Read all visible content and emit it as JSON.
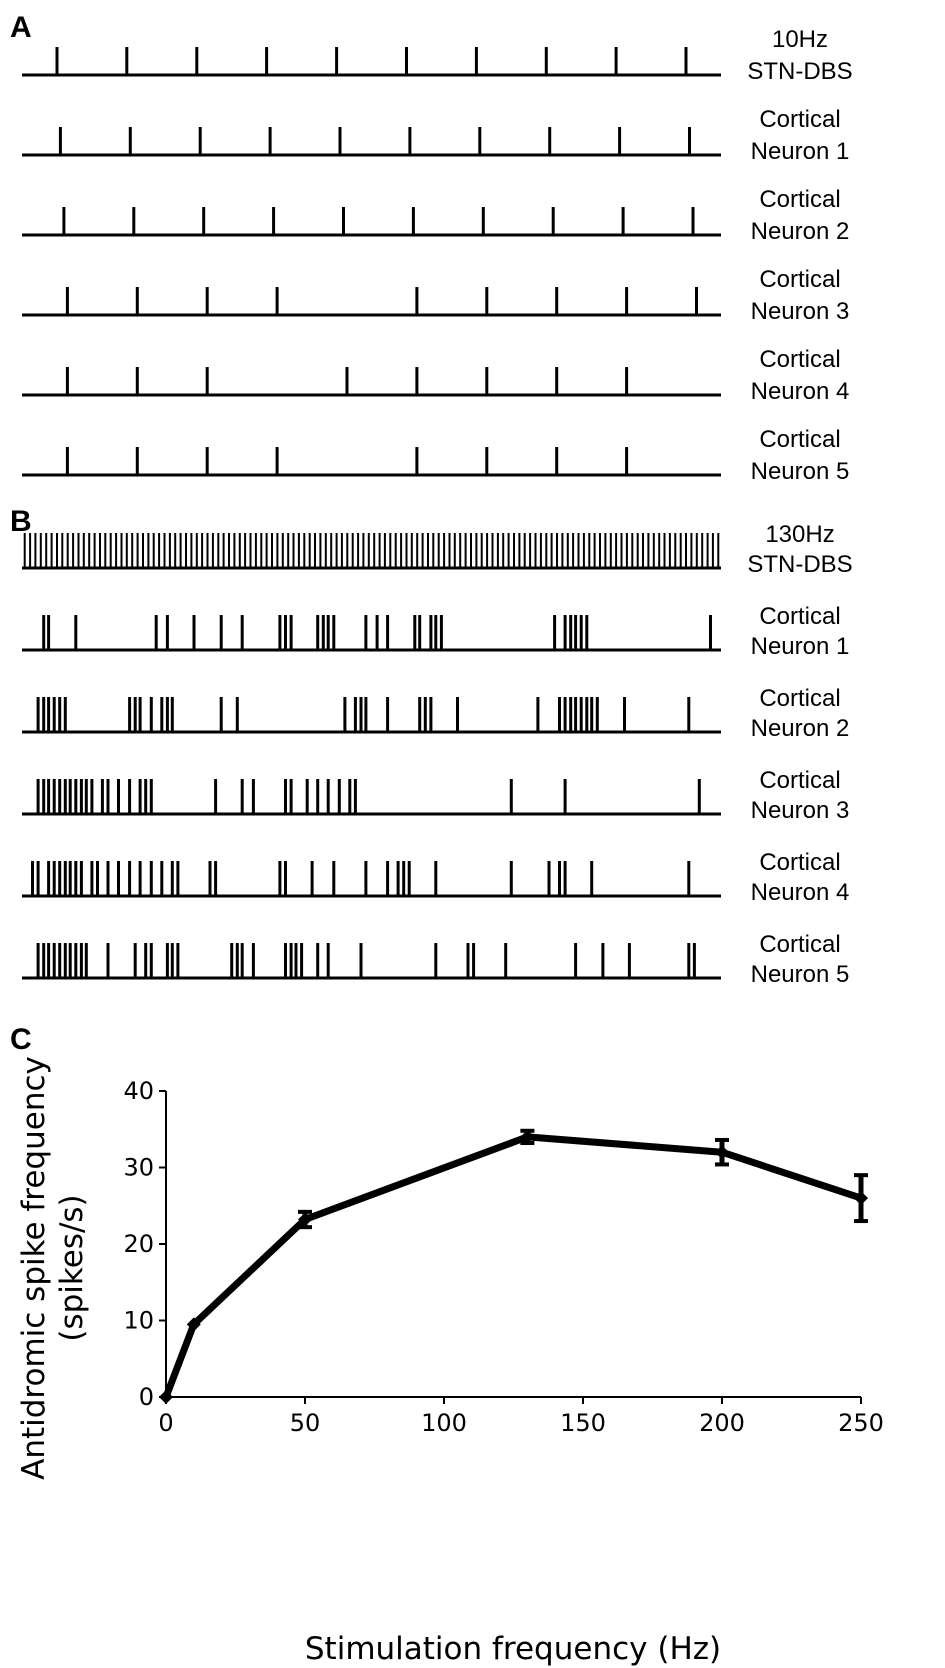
{
  "chart_data": [
    {
      "type": "raster",
      "panel_label": "A",
      "rows": [
        {
          "label_lines": [
            "10Hz",
            "STN-DBS"
          ],
          "spikes": [
            0.05,
            0.15,
            0.25,
            0.35,
            0.45,
            0.55,
            0.65,
            0.75,
            0.85,
            0.95
          ]
        },
        {
          "label_lines": [
            "Cortical",
            "Neuron 1"
          ],
          "spikes": [
            0.055,
            0.155,
            0.255,
            0.355,
            0.455,
            0.555,
            0.655,
            0.755,
            0.855,
            0.955
          ]
        },
        {
          "label_lines": [
            "Cortical",
            "Neuron 2"
          ],
          "spikes": [
            0.06,
            0.16,
            0.26,
            0.36,
            0.46,
            0.56,
            0.66,
            0.76,
            0.86,
            0.96
          ]
        },
        {
          "label_lines": [
            "Cortical",
            "Neuron 3"
          ],
          "spikes": [
            0.065,
            0.165,
            0.265,
            0.365,
            0.565,
            0.665,
            0.765,
            0.865,
            0.965
          ]
        },
        {
          "label_lines": [
            "Cortical",
            "Neuron 4"
          ],
          "spikes": [
            0.065,
            0.165,
            0.265,
            0.465,
            0.565,
            0.665,
            0.765,
            0.865
          ]
        },
        {
          "label_lines": [
            "Cortical",
            "Neuron 5"
          ],
          "spikes": [
            0.065,
            0.165,
            0.265,
            0.365,
            0.565,
            0.665,
            0.765,
            0.865
          ]
        }
      ]
    },
    {
      "type": "raster",
      "panel_label": "B",
      "rows": [
        {
          "label_lines": [
            "130Hz",
            "STN-DBS"
          ],
          "dense_train_hz": 130
        },
        {
          "label_lines": [
            "Cortical",
            "Neuron 1"
          ],
          "spikes": [
            0.031,
            0.038,
            0.077,
            0.192,
            0.208,
            0.246,
            0.285,
            0.315,
            0.369,
            0.377,
            0.385,
            0.423,
            0.431,
            0.438,
            0.446,
            0.492,
            0.508,
            0.523,
            0.562,
            0.569,
            0.585,
            0.592,
            0.6,
            0.762,
            0.777,
            0.785,
            0.792,
            0.8,
            0.808,
            0.985
          ]
        },
        {
          "label_lines": [
            "Cortical",
            "Neuron 2"
          ],
          "spikes": [
            0.023,
            0.031,
            0.038,
            0.046,
            0.054,
            0.062,
            0.154,
            0.162,
            0.169,
            0.185,
            0.2,
            0.208,
            0.215,
            0.285,
            0.308,
            0.462,
            0.477,
            0.485,
            0.492,
            0.523,
            0.569,
            0.577,
            0.585,
            0.623,
            0.738,
            0.769,
            0.777,
            0.785,
            0.792,
            0.8,
            0.808,
            0.815,
            0.823,
            0.862,
            0.954
          ]
        },
        {
          "label_lines": [
            "Cortical",
            "Neuron 3"
          ],
          "spikes": [
            0.023,
            0.031,
            0.038,
            0.046,
            0.054,
            0.062,
            0.069,
            0.077,
            0.085,
            0.092,
            0.1,
            0.115,
            0.123,
            0.138,
            0.154,
            0.169,
            0.177,
            0.185,
            0.277,
            0.315,
            0.331,
            0.377,
            0.385,
            0.408,
            0.423,
            0.438,
            0.454,
            0.469,
            0.477,
            0.7,
            0.777,
            0.969
          ]
        },
        {
          "label_lines": [
            "Cortical",
            "Neuron 4"
          ],
          "spikes": [
            0.015,
            0.023,
            0.038,
            0.046,
            0.054,
            0.062,
            0.069,
            0.077,
            0.085,
            0.1,
            0.108,
            0.123,
            0.138,
            0.154,
            0.169,
            0.185,
            0.2,
            0.215,
            0.223,
            0.269,
            0.277,
            0.369,
            0.377,
            0.415,
            0.446,
            0.492,
            0.523,
            0.538,
            0.546,
            0.554,
            0.592,
            0.7,
            0.754,
            0.769,
            0.777,
            0.815,
            0.954
          ]
        },
        {
          "label_lines": [
            "Cortical",
            "Neuron 5"
          ],
          "spikes": [
            0.023,
            0.031,
            0.038,
            0.046,
            0.054,
            0.062,
            0.069,
            0.077,
            0.085,
            0.092,
            0.123,
            0.162,
            0.177,
            0.185,
            0.208,
            0.215,
            0.223,
            0.3,
            0.308,
            0.315,
            0.331,
            0.377,
            0.385,
            0.392,
            0.4,
            0.423,
            0.438,
            0.485,
            0.592,
            0.638,
            0.646,
            0.692,
            0.792,
            0.831,
            0.869,
            0.954,
            0.962
          ]
        }
      ]
    },
    {
      "type": "line",
      "panel_label": "C",
      "x": [
        0,
        10,
        50,
        130,
        200,
        250
      ],
      "y": [
        0,
        9.5,
        23.2,
        34,
        32,
        26
      ],
      "error": [
        0,
        0,
        1.0,
        0.8,
        1.6,
        3.0
      ],
      "xlabel": "Stimulation frequency (Hz)",
      "ylabel_lines": [
        "Antidromic spike frequency",
        "(spikes/s)"
      ],
      "xlim": [
        0,
        250
      ],
      "ylim": [
        0,
        40
      ],
      "xticks": [
        0,
        50,
        100,
        150,
        200,
        250
      ],
      "yticks": [
        0,
        10,
        20,
        30,
        40
      ],
      "grid": false,
      "line_color": "#000000"
    }
  ]
}
